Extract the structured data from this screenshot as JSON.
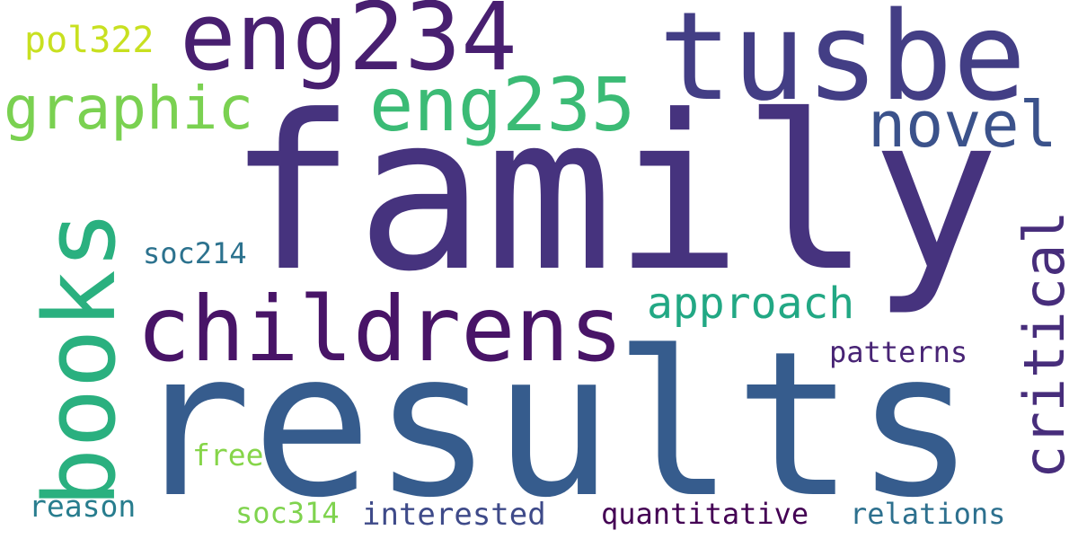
{
  "words": [
    {
      "key": "family",
      "text": "family",
      "color": "#46337e"
    },
    {
      "key": "results",
      "text": "results",
      "color": "#365c8d"
    },
    {
      "key": "tusbe",
      "text": "tusbe",
      "color": "#433e85"
    },
    {
      "key": "eng234",
      "text": "eng234",
      "color": "#481f70"
    },
    {
      "key": "childrens",
      "text": "childrens",
      "color": "#481467"
    },
    {
      "key": "books",
      "text": "books",
      "color": "#2ab07f"
    },
    {
      "key": "eng235",
      "text": "eng235",
      "color": "#3bbb75"
    },
    {
      "key": "graphic",
      "text": "graphic",
      "color": "#7ad151"
    },
    {
      "key": "novel",
      "text": "novel",
      "color": "#3b528b"
    },
    {
      "key": "critical",
      "text": "critical",
      "color": "#472d7b"
    },
    {
      "key": "approach",
      "text": "approach",
      "color": "#22a884"
    },
    {
      "key": "pol322",
      "text": "pol322",
      "color": "#c8e020"
    },
    {
      "key": "soc214",
      "text": "soc214",
      "color": "#2c728e"
    },
    {
      "key": "patterns",
      "text": "patterns",
      "color": "#482475"
    },
    {
      "key": "free",
      "text": "free",
      "color": "#86d549"
    },
    {
      "key": "reason",
      "text": "reason",
      "color": "#287d8e"
    },
    {
      "key": "soc314",
      "text": "soc314",
      "color": "#7fd34e"
    },
    {
      "key": "interested",
      "text": "interested",
      "color": "#3e4a89"
    },
    {
      "key": "quantitative",
      "text": "quantitative",
      "color": "#440154"
    },
    {
      "key": "relations",
      "text": "relations",
      "color": "#2d708e"
    }
  ]
}
